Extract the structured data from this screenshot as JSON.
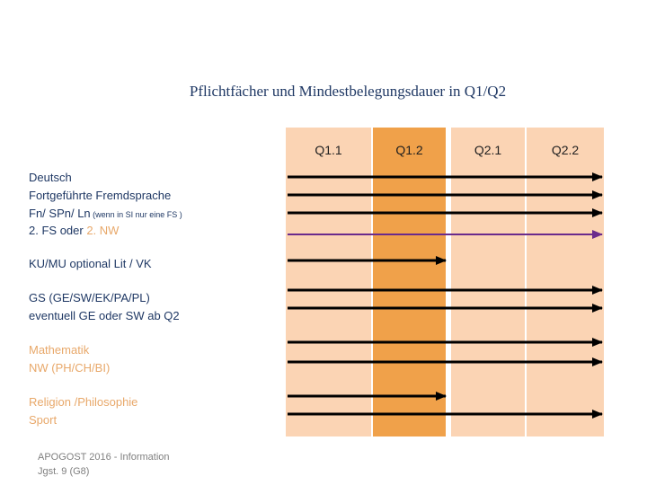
{
  "title": "Pflichtfächer und Mindestbelegungsdauer in Q1/Q2",
  "columns": [
    {
      "label": "Q1.1",
      "color": "#fbd4b4"
    },
    {
      "label": "Q1.2",
      "color": "#f0a14a"
    },
    {
      "label": "Q2.1",
      "color": "#fbd4b4"
    },
    {
      "label": "Q2.2",
      "color": "#fbd4b4"
    }
  ],
  "colors": {
    "arrow": "#000000",
    "purple_arrow": "#6a2a8c",
    "label_dark": "#1f3864",
    "label_orange": "#e8a86a"
  },
  "labels": {
    "deutsch": "Deutsch",
    "fremdsprache": "Fortgeführte Fremdsprache",
    "fn_main": "Fn/ SPn/ Ln",
    "fn_note": " (wenn in SI nur eine FS )",
    "fs2": "2. FS",
    "oder": " oder ",
    "nw2": "2. NW",
    "kumu": "KU/MU optional Lit / VK",
    "gs": "GS (GE/SW/EK/PA/PL)",
    "gs_note": "eventuell GE oder SW ab Q2",
    "mathematik": "Mathematik",
    "nw": "NW (PH/CH/BI)",
    "religion": "Religion /Philosophie",
    "sport": "Sport"
  },
  "arrows": [
    {
      "subject": "Deutsch",
      "end": "Q2.2"
    },
    {
      "subject": "Fortgeführte Fremdsprache",
      "end": "Q2.2"
    },
    {
      "subject": "Fn/ SPn/ Ln",
      "end": "Q2.2"
    },
    {
      "subject": "2. FS oder 2. NW",
      "end": "Q2.2",
      "color": "purple"
    },
    {
      "subject": "KU/MU optional Lit / VK",
      "end": "Q1.2"
    },
    {
      "subject": "GS (GE/SW/EK/PA/PL)",
      "end": "Q2.2"
    },
    {
      "subject": "eventuell GE oder SW ab Q2",
      "end": "Q2.2"
    },
    {
      "subject": "Mathematik",
      "end": "Q2.2"
    },
    {
      "subject": "NW (PH/CH/BI)",
      "end": "Q2.2"
    },
    {
      "subject": "Religion /Philosophie",
      "end": "Q1.2"
    },
    {
      "subject": "Sport",
      "end": "Q2.2"
    }
  ],
  "footer": {
    "line1": "APOGOST 2016 - Information",
    "line2": "Jgst. 9 (G8)"
  }
}
